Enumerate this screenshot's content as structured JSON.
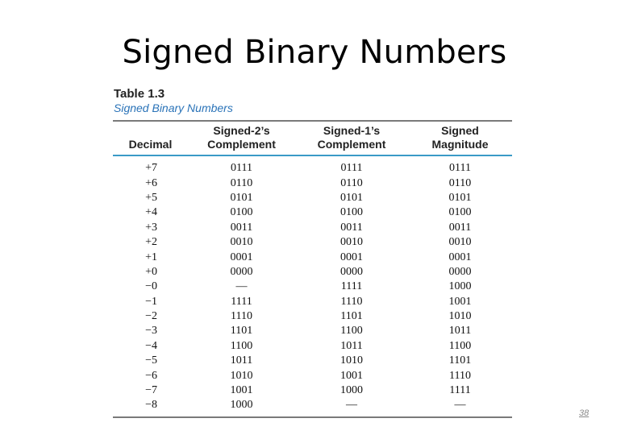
{
  "slide": {
    "title": "Signed Binary Numbers",
    "page_number": "38"
  },
  "table": {
    "caption_number": "Table 1.3",
    "caption_title": "Signed Binary Numbers",
    "headers": [
      "Decimal",
      "Signed-2’s Complement",
      "Signed-1’s Complement",
      "Signed Magnitude"
    ],
    "header_lines": [
      [
        "",
        "Decimal"
      ],
      [
        "Signed-2’s",
        "Complement"
      ],
      [
        "Signed-1’s",
        "Complement"
      ],
      [
        "Signed",
        "Magnitude"
      ]
    ],
    "rows": [
      [
        "+7",
        "0111",
        "0111",
        "0111"
      ],
      [
        "+6",
        "0110",
        "0110",
        "0110"
      ],
      [
        "+5",
        "0101",
        "0101",
        "0101"
      ],
      [
        "+4",
        "0100",
        "0100",
        "0100"
      ],
      [
        "+3",
        "0011",
        "0011",
        "0011"
      ],
      [
        "+2",
        "0010",
        "0010",
        "0010"
      ],
      [
        "+1",
        "0001",
        "0001",
        "0001"
      ],
      [
        "+0",
        "0000",
        "0000",
        "0000"
      ],
      [
        "−0",
        "—",
        "1111",
        "1000"
      ],
      [
        "−1",
        "1111",
        "1110",
        "1001"
      ],
      [
        "−2",
        "1110",
        "1101",
        "1010"
      ],
      [
        "−3",
        "1101",
        "1100",
        "1011"
      ],
      [
        "−4",
        "1100",
        "1011",
        "1100"
      ],
      [
        "−5",
        "1011",
        "1010",
        "1101"
      ],
      [
        "−6",
        "1010",
        "1001",
        "1110"
      ],
      [
        "−7",
        "1001",
        "1000",
        "1111"
      ],
      [
        "−8",
        "1000",
        "—",
        "—"
      ]
    ]
  },
  "colors": {
    "caption_title": "#2a73b8",
    "header_rule": "#3a9ac7",
    "outer_rule": "#7a7a7a"
  }
}
